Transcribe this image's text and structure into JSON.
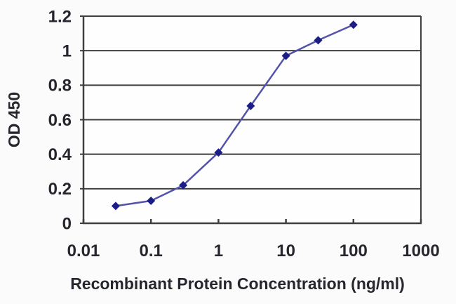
{
  "figure": {
    "background": "#fbfbfb",
    "plot_background": "#fefefe"
  },
  "chart_data": {
    "type": "line",
    "title": "",
    "xlabel": "Recombinant Protein Concentration (ng/ml)",
    "ylabel": "OD 450",
    "x_scale": "log",
    "y_scale": "linear",
    "xlim": [
      0.01,
      1000
    ],
    "ylim": [
      0,
      1.2
    ],
    "x_ticks": [
      0.01,
      0.1,
      1,
      10,
      100,
      1000
    ],
    "x_tick_labels": [
      "0.01",
      "0.1",
      "1",
      "10",
      "100",
      "1000"
    ],
    "y_ticks": [
      0,
      0.2,
      0.4,
      0.6,
      0.8,
      1,
      1.2
    ],
    "y_tick_labels": [
      "0",
      "0.2",
      "0.4",
      "0.6",
      "0.8",
      "1",
      "1.2"
    ],
    "grid": "horizontal",
    "legend": false,
    "series": [
      {
        "name": "OD 450",
        "x": [
          0.03,
          0.1,
          0.3,
          1,
          3,
          10,
          30,
          100
        ],
        "y": [
          0.1,
          0.13,
          0.22,
          0.41,
          0.68,
          0.97,
          1.06,
          1.15
        ],
        "marker": "diamond",
        "line_color": "#5252aa",
        "marker_color": "#1c1c87"
      }
    ],
    "colors": {
      "axis": "#3f3f3f",
      "grid": "#3f3f3f",
      "text": "#26262e"
    }
  }
}
